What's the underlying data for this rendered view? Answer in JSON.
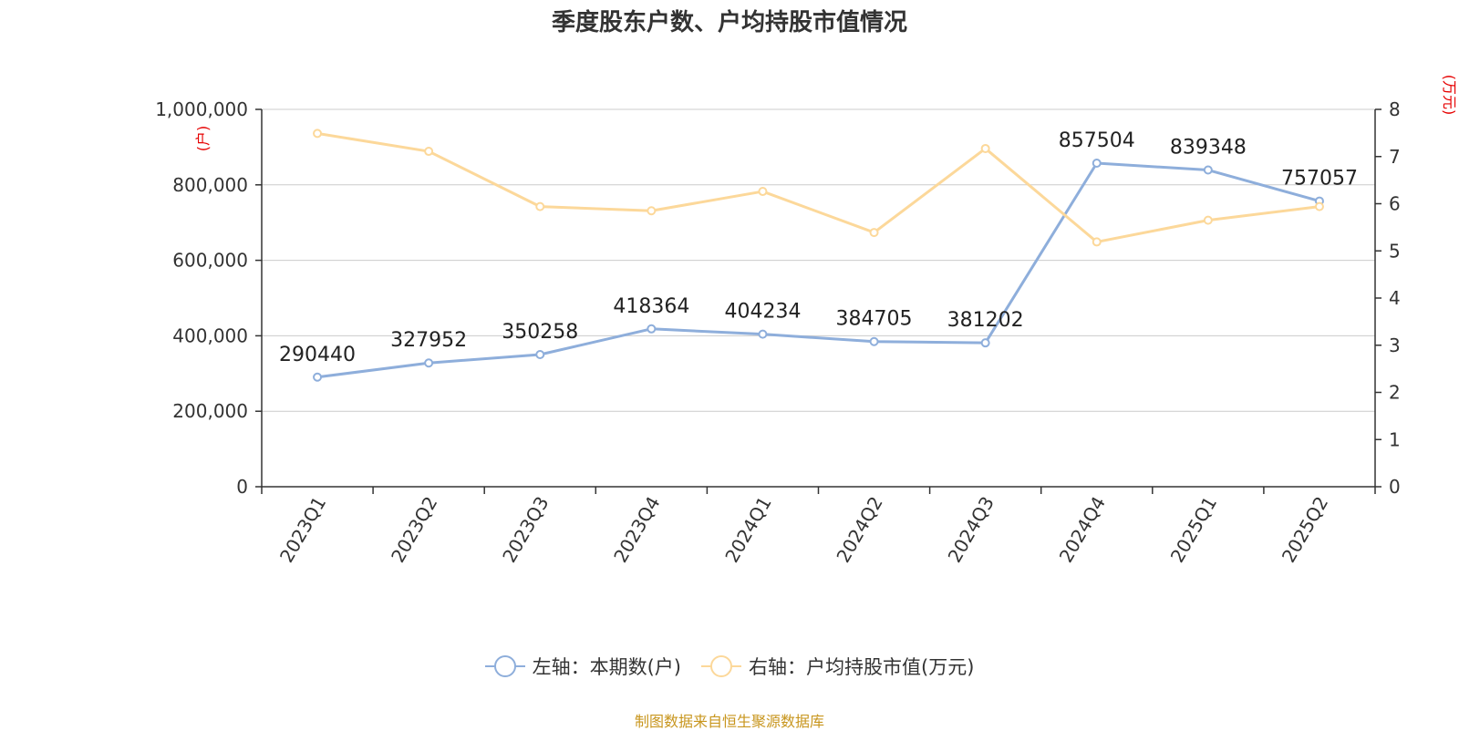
{
  "chart_data": {
    "type": "line",
    "title": "季度股东户数、户均持股市值情况",
    "categories": [
      "2023Q1",
      "2023Q2",
      "2023Q3",
      "2023Q4",
      "2024Q1",
      "2024Q2",
      "2024Q3",
      "2024Q4",
      "2025Q1",
      "2025Q2"
    ],
    "y_left": {
      "unit_label": "(户)",
      "ylim": [
        0,
        1000000
      ],
      "ticks": [
        "0",
        "200,000",
        "400,000",
        "600,000",
        "800,000",
        "1,000,000"
      ]
    },
    "y_right": {
      "unit_label": "(万元)",
      "ylim": [
        0,
        8
      ],
      "ticks": [
        "0",
        "1",
        "2",
        "3",
        "4",
        "5",
        "6",
        "7",
        "8"
      ]
    },
    "grid": true,
    "legend_position": "bottom-center",
    "series": [
      {
        "name": "左轴：本期数(户)",
        "axis": "left",
        "color": "#8eaedb",
        "values": [
          290440,
          327952,
          350258,
          418364,
          404234,
          384705,
          381202,
          857504,
          839348,
          757057
        ],
        "labels": [
          "290440",
          "327952",
          "350258",
          "418364",
          "404234",
          "384705",
          "381202",
          "857504",
          "839348",
          "757057"
        ]
      },
      {
        "name": "右轴：户均持股市值(万元)",
        "axis": "right",
        "color": "#fcd89a",
        "values": [
          7.49,
          7.11,
          5.94,
          5.85,
          6.26,
          5.39,
          7.17,
          5.19,
          5.65,
          5.94
        ]
      }
    ]
  },
  "source_text": "制图数据来自恒生聚源数据库"
}
